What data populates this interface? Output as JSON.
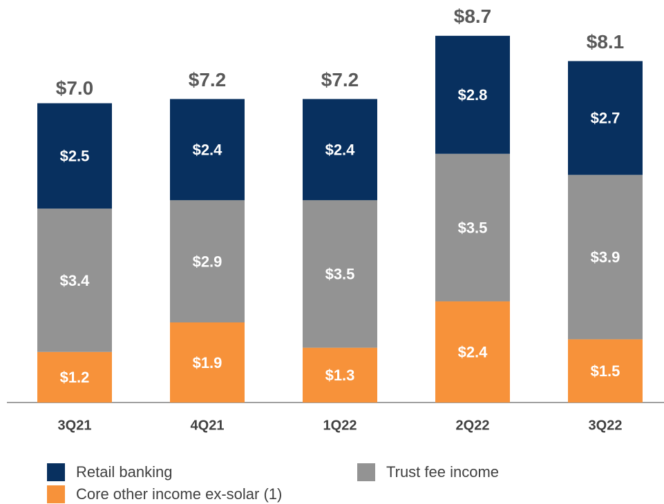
{
  "chart_data": {
    "type": "stacked_bar",
    "categories": [
      "3Q21",
      "4Q21",
      "1Q22",
      "2Q22",
      "3Q22"
    ],
    "series": [
      {
        "name": "Core other income ex-solar (1)",
        "color": "#f7923a",
        "values": [
          1.2,
          1.9,
          1.3,
          2.4,
          1.5
        ],
        "value_labels": [
          "$1.2",
          "$1.9",
          "$1.3",
          "$2.4",
          "$1.5"
        ]
      },
      {
        "name": "Trust fee income",
        "color": "#939393",
        "values": [
          3.4,
          2.9,
          3.5,
          3.5,
          3.9
        ],
        "value_labels": [
          "$3.4",
          "$2.9",
          "$3.5",
          "$3.5",
          "$3.9"
        ]
      },
      {
        "name": "Retail banking",
        "color": "#08305f",
        "values": [
          2.5,
          2.4,
          2.4,
          2.8,
          2.7
        ],
        "value_labels": [
          "$2.5",
          "$2.4",
          "$2.4",
          "$2.8",
          "$2.7"
        ]
      }
    ],
    "totals": [
      7.0,
      7.2,
      7.2,
      8.7,
      8.1
    ],
    "total_labels": [
      "$7.0",
      "$7.2",
      "$7.2",
      "$8.7",
      "$8.1"
    ],
    "ylim": [
      0,
      9.5
    ]
  }
}
